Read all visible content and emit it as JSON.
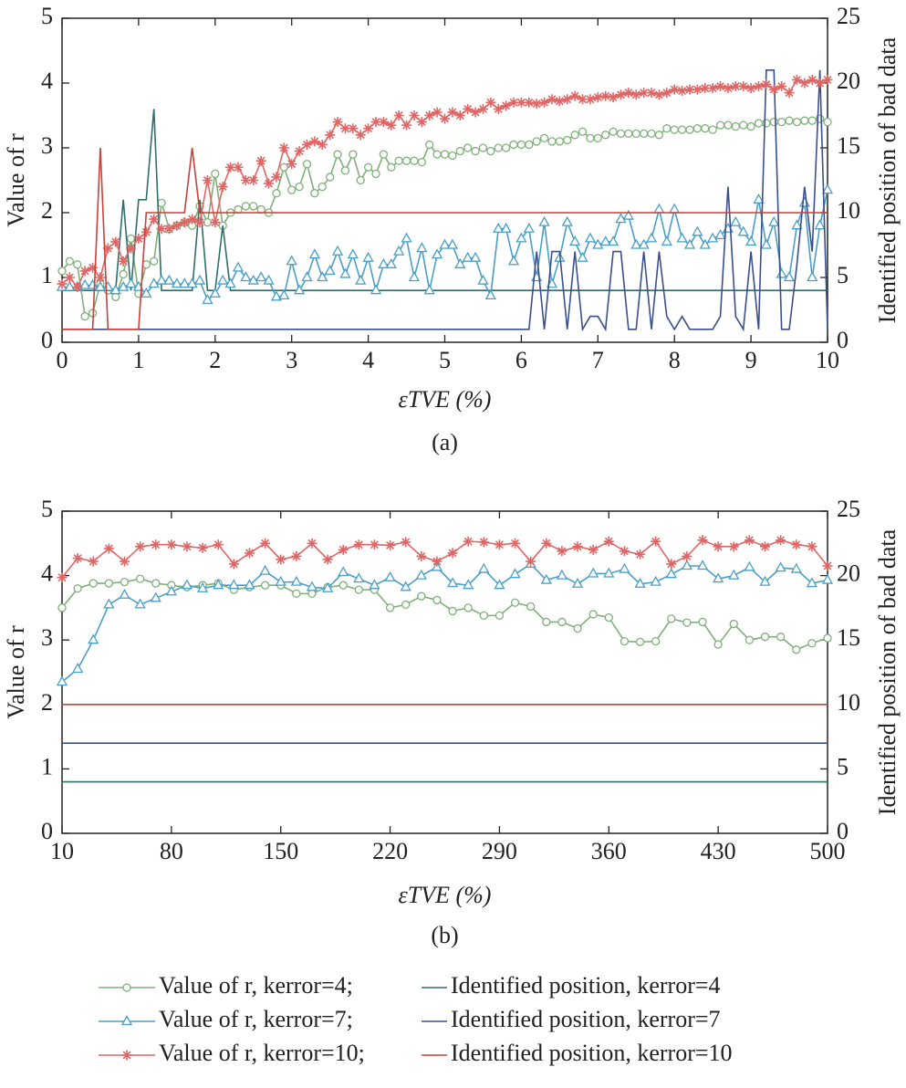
{
  "chart_data": [
    {
      "type": "line",
      "caption": "(a)",
      "xlabel": "εTVE (%)",
      "ylabel": "Value of r",
      "y2label": "Identified position of bad data",
      "x": [
        0,
        0.1,
        0.2,
        0.3,
        0.4,
        0.5,
        0.6,
        0.7,
        0.8,
        0.9,
        1,
        1.1,
        1.2,
        1.3,
        1.4,
        1.5,
        1.6,
        1.7,
        1.8,
        1.9,
        2,
        2.1,
        2.2,
        2.3,
        2.4,
        2.5,
        2.6,
        2.7,
        2.8,
        2.9,
        3,
        3.1,
        3.2,
        3.3,
        3.4,
        3.5,
        3.6,
        3.7,
        3.8,
        3.9,
        4,
        4.1,
        4.2,
        4.3,
        4.4,
        4.5,
        4.6,
        4.7,
        4.8,
        4.9,
        5,
        5.1,
        5.2,
        5.3,
        5.4,
        5.5,
        5.6,
        5.7,
        5.8,
        5.9,
        6,
        6.1,
        6.2,
        6.3,
        6.4,
        6.5,
        6.6,
        6.7,
        6.8,
        6.9,
        7,
        7.1,
        7.2,
        7.3,
        7.4,
        7.5,
        7.6,
        7.7,
        7.8,
        7.9,
        8,
        8.1,
        8.2,
        8.3,
        8.4,
        8.5,
        8.6,
        8.7,
        8.8,
        8.9,
        9,
        9.1,
        9.2,
        9.3,
        9.4,
        9.5,
        9.6,
        9.7,
        9.8,
        9.9,
        10
      ],
      "xlim": [
        0,
        10
      ],
      "xticks": [
        0,
        1,
        2,
        3,
        4,
        5,
        6,
        7,
        8,
        9,
        10
      ],
      "ylim": [
        0,
        5
      ],
      "yticks": [
        0,
        1,
        2,
        3,
        4,
        5
      ],
      "y2lim": [
        0,
        25
      ],
      "y2ticks": [
        0,
        5,
        10,
        15,
        20,
        25
      ],
      "series": [
        {
          "name": "Value of r, kerror=4;",
          "color": "#7fb07a",
          "marker": "circle",
          "values": [
            1.1,
            1.25,
            1.2,
            0.4,
            0.45,
            0.9,
            0.8,
            0.7,
            1.05,
            1.6,
            0.75,
            1.2,
            1.25,
            2.15,
            1.75,
            1.8,
            1.85,
            1.8,
            2.1,
            1.85,
            2.6,
            1.8,
            2.0,
            2.05,
            2.1,
            2.1,
            2.05,
            2.0,
            2.3,
            2.7,
            2.35,
            2.4,
            2.75,
            2.3,
            2.4,
            2.55,
            2.9,
            2.65,
            2.9,
            2.5,
            2.7,
            2.6,
            2.9,
            2.7,
            2.8,
            2.8,
            2.8,
            2.78,
            3.05,
            2.9,
            2.9,
            2.88,
            2.95,
            3.0,
            2.95,
            3.0,
            2.95,
            3.0,
            3.0,
            3.05,
            3.05,
            3.05,
            3.1,
            3.15,
            3.1,
            3.1,
            3.12,
            3.2,
            3.25,
            3.15,
            3.15,
            3.2,
            3.25,
            3.22,
            3.22,
            3.22,
            3.22,
            3.22,
            3.2,
            3.3,
            3.28,
            3.28,
            3.28,
            3.3,
            3.3,
            3.28,
            3.35,
            3.35,
            3.33,
            3.35,
            3.33,
            3.38,
            3.38,
            3.4,
            3.4,
            3.42,
            3.4,
            3.42,
            3.42,
            3.45,
            3.4
          ]
        },
        {
          "name": "Identified position, kerror=4",
          "color": "#2e6f6a",
          "axis": "y2",
          "values": [
            4,
            4,
            4,
            4,
            4,
            4,
            4,
            4,
            11,
            4,
            11,
            11,
            18,
            4,
            4,
            4,
            4,
            4,
            11,
            4,
            4,
            9,
            4,
            4,
            4,
            4,
            4,
            4,
            4,
            4,
            4,
            4,
            4,
            4,
            4,
            4,
            4,
            4,
            4,
            4,
            4,
            4,
            4,
            4,
            4,
            4,
            4,
            4,
            4,
            4,
            4,
            4,
            4,
            4,
            4,
            4,
            4,
            4,
            4,
            4,
            4,
            4,
            4,
            4,
            4,
            4,
            4,
            4,
            4,
            4,
            4,
            4,
            4,
            4,
            4,
            4,
            4,
            4,
            4,
            4,
            4,
            4,
            4,
            4,
            4,
            4,
            4,
            4,
            4,
            4,
            4,
            4,
            4,
            4,
            4,
            4,
            4,
            4,
            4,
            4,
            4
          ]
        },
        {
          "name": "Value of r, kerror=7;",
          "color": "#4a9fc8",
          "marker": "triangle",
          "values": [
            0.85,
            0.85,
            0.85,
            0.88,
            0.88,
            0.85,
            0.85,
            0.8,
            0.85,
            0.9,
            0.85,
            0.75,
            0.9,
            0.95,
            0.95,
            0.9,
            0.9,
            0.9,
            0.95,
            0.65,
            0.75,
            0.95,
            0.9,
            1.15,
            1.0,
            0.95,
            1.0,
            0.95,
            0.7,
            0.72,
            1.25,
            0.8,
            1.0,
            1.35,
            1.0,
            1.1,
            1.4,
            1.05,
            1.35,
            0.95,
            1.3,
            0.8,
            1.2,
            1.2,
            1.4,
            1.6,
            1.0,
            1.45,
            0.8,
            1.35,
            1.5,
            1.5,
            1.2,
            1.3,
            1.3,
            0.95,
            0.72,
            1.75,
            1.75,
            1.25,
            1.6,
            1.75,
            1.0,
            1.85,
            0.9,
            1.3,
            1.85,
            1.55,
            1.3,
            1.6,
            1.5,
            1.55,
            1.55,
            1.9,
            1.95,
            1.5,
            1.5,
            1.6,
            2.05,
            1.55,
            2.05,
            1.6,
            1.5,
            1.7,
            1.5,
            1.6,
            1.65,
            1.75,
            1.85,
            1.7,
            1.55,
            2.2,
            1.5,
            1.85,
            1.05,
            1.0,
            1.8,
            2.15,
            1.0,
            1.8,
            2.35
          ]
        },
        {
          "name": "Identified position, kerror=7",
          "color": "#3b4f8f",
          "axis": "y2",
          "values": [
            1,
            1,
            1,
            1,
            1,
            1,
            1,
            1,
            1,
            1,
            1,
            1,
            1,
            1,
            1,
            1,
            1,
            1,
            1,
            1,
            1,
            1,
            1,
            1,
            1,
            1,
            1,
            1,
            1,
            1,
            1,
            1,
            1,
            1,
            1,
            1,
            1,
            1,
            1,
            1,
            1,
            1,
            1,
            1,
            1,
            1,
            1,
            1,
            1,
            1,
            1,
            1,
            1,
            1,
            1,
            1,
            1,
            1,
            1,
            1,
            1,
            1,
            7,
            1,
            7,
            7,
            1,
            7,
            1,
            2,
            2,
            1,
            7,
            7,
            1,
            1,
            7,
            1,
            7,
            2,
            1,
            2,
            1,
            1,
            1,
            1,
            2,
            12,
            2,
            1,
            7,
            1,
            21,
            21,
            1,
            1,
            6,
            12,
            7,
            21,
            1
          ]
        },
        {
          "name": "Value of r, kerror=10;",
          "color": "#e06666",
          "marker": "star",
          "values": [
            0.9,
            1.0,
            0.85,
            1.1,
            1.15,
            1.0,
            1.45,
            1.55,
            1.25,
            1.45,
            1.6,
            1.7,
            1.9,
            1.75,
            1.75,
            1.8,
            1.85,
            1.9,
            1.85,
            2.5,
            1.85,
            2.4,
            2.7,
            2.7,
            2.5,
            2.5,
            2.8,
            2.45,
            2.55,
            3.0,
            2.75,
            2.95,
            3.05,
            3.1,
            3.05,
            3.2,
            3.4,
            3.3,
            3.3,
            3.2,
            3.3,
            3.4,
            3.4,
            3.35,
            3.5,
            3.35,
            3.5,
            3.4,
            3.5,
            3.55,
            3.45,
            3.55,
            3.5,
            3.6,
            3.55,
            3.6,
            3.7,
            3.6,
            3.65,
            3.7,
            3.7,
            3.7,
            3.68,
            3.7,
            3.75,
            3.72,
            3.75,
            3.8,
            3.75,
            3.75,
            3.78,
            3.8,
            3.78,
            3.82,
            3.85,
            3.82,
            3.85,
            3.85,
            3.82,
            3.85,
            3.9,
            3.88,
            3.9,
            3.9,
            3.92,
            3.92,
            3.95,
            3.92,
            3.95,
            3.95,
            3.92,
            3.95,
            3.98,
            3.9,
            3.95,
            3.85,
            4.05,
            4.0,
            4.05,
            4.0,
            4.05
          ]
        },
        {
          "name": "Identified position, kerror=10",
          "color": "#c9413a",
          "axis": "y2",
          "values": [
            1,
            1,
            1,
            1,
            1,
            15,
            1,
            1,
            1,
            1,
            1,
            10,
            10,
            10,
            10,
            10,
            10,
            15,
            10,
            10,
            10,
            10,
            10,
            10,
            10,
            10,
            10,
            10,
            10,
            10,
            10,
            10,
            10,
            10,
            10,
            10,
            10,
            10,
            10,
            10,
            10,
            10,
            10,
            10,
            10,
            10,
            10,
            10,
            10,
            10,
            10,
            10,
            10,
            10,
            10,
            10,
            10,
            10,
            10,
            10,
            10,
            10,
            10,
            10,
            10,
            10,
            10,
            10,
            10,
            10,
            10,
            10,
            10,
            10,
            10,
            10,
            10,
            10,
            10,
            10,
            10,
            10,
            10,
            10,
            10,
            10,
            10,
            10,
            10,
            10,
            10,
            10,
            10,
            10,
            10,
            10,
            10,
            10,
            10,
            10,
            10
          ]
        }
      ]
    },
    {
      "type": "line",
      "caption": "(b)",
      "xlabel": "εTVE (%)",
      "ylabel": "Value of r",
      "y2label": "Identified position of bad data",
      "x": [
        10,
        20,
        30,
        40,
        50,
        60,
        70,
        80,
        90,
        100,
        110,
        120,
        130,
        140,
        150,
        160,
        170,
        180,
        190,
        200,
        210,
        220,
        230,
        240,
        250,
        260,
        270,
        280,
        290,
        300,
        310,
        320,
        330,
        340,
        350,
        360,
        370,
        380,
        390,
        400,
        410,
        420,
        430,
        440,
        450,
        460,
        470,
        480,
        490,
        500
      ],
      "xlim": [
        10,
        500
      ],
      "xticks": [
        10,
        80,
        150,
        220,
        290,
        360,
        430,
        500
      ],
      "ylim": [
        0,
        5
      ],
      "yticks": [
        0,
        1,
        2,
        3,
        4,
        5
      ],
      "y2lim": [
        0,
        25
      ],
      "y2ticks": [
        0,
        5,
        10,
        15,
        20,
        25
      ],
      "series": [
        {
          "color": "#7fb07a",
          "marker": "circle",
          "values": [
            3.5,
            3.8,
            3.88,
            3.88,
            3.9,
            3.95,
            3.88,
            3.85,
            3.82,
            3.85,
            3.88,
            3.78,
            3.82,
            3.85,
            3.85,
            3.72,
            3.72,
            3.82,
            3.85,
            3.78,
            3.78,
            3.5,
            3.55,
            3.68,
            3.62,
            3.45,
            3.5,
            3.38,
            3.38,
            3.58,
            3.52,
            3.28,
            3.28,
            3.18,
            3.4,
            3.35,
            2.98,
            2.97,
            2.98,
            3.33,
            3.27,
            3.28,
            2.93,
            3.25,
            3.0,
            3.05,
            3.05,
            2.85,
            2.95,
            3.03
          ]
        },
        {
          "color": "#2e6f6a",
          "axis": "y2",
          "values": [
            4,
            4,
            4,
            4,
            4,
            4,
            4,
            4,
            4,
            4,
            4,
            4,
            4,
            4,
            4,
            4,
            4,
            4,
            4,
            4,
            4,
            4,
            4,
            4,
            4,
            4,
            4,
            4,
            4,
            4,
            4,
            4,
            4,
            4,
            4,
            4,
            4,
            4,
            4,
            4,
            4,
            4,
            4,
            4,
            4,
            4,
            4,
            4,
            4,
            4
          ]
        },
        {
          "color": "#4a9fc8",
          "marker": "triangle",
          "values": [
            2.35,
            2.55,
            3.0,
            3.55,
            3.7,
            3.55,
            3.65,
            3.75,
            3.85,
            3.8,
            3.85,
            3.85,
            3.85,
            4.07,
            3.9,
            3.9,
            3.82,
            3.8,
            4.05,
            3.95,
            3.85,
            3.97,
            3.82,
            4.0,
            4.13,
            3.88,
            3.85,
            4.1,
            3.85,
            4.02,
            4.18,
            3.93,
            4.0,
            3.87,
            4.03,
            4.03,
            4.1,
            3.87,
            3.9,
            4.02,
            4.15,
            4.15,
            3.95,
            4.0,
            4.13,
            3.9,
            4.12,
            4.1,
            3.88,
            3.93
          ]
        },
        {
          "color": "#3b4f8f",
          "axis": "y2",
          "values": [
            7,
            7,
            7,
            7,
            7,
            7,
            7,
            7,
            7,
            7,
            7,
            7,
            7,
            7,
            7,
            7,
            7,
            7,
            7,
            7,
            7,
            7,
            7,
            7,
            7,
            7,
            7,
            7,
            7,
            7,
            7,
            7,
            7,
            7,
            7,
            7,
            7,
            7,
            7,
            7,
            7,
            7,
            7,
            7,
            7,
            7,
            7,
            7,
            7,
            7
          ]
        },
        {
          "color": "#e06666",
          "marker": "star",
          "values": [
            3.97,
            4.27,
            4.22,
            4.42,
            4.22,
            4.45,
            4.48,
            4.48,
            4.45,
            4.43,
            4.48,
            4.18,
            4.35,
            4.5,
            4.25,
            4.3,
            4.5,
            4.25,
            4.4,
            4.48,
            4.48,
            4.47,
            4.52,
            4.3,
            4.22,
            4.35,
            4.53,
            4.52,
            4.48,
            4.5,
            4.22,
            4.5,
            4.38,
            4.45,
            4.4,
            4.53,
            4.38,
            4.33,
            4.53,
            4.18,
            4.3,
            4.55,
            4.45,
            4.45,
            4.55,
            4.45,
            4.55,
            4.48,
            4.45,
            4.15
          ]
        },
        {
          "color": "#c9413a",
          "axis": "y2",
          "values": [
            10,
            10,
            10,
            10,
            10,
            10,
            10,
            10,
            10,
            10,
            10,
            10,
            10,
            10,
            10,
            10,
            10,
            10,
            10,
            10,
            10,
            10,
            10,
            10,
            10,
            10,
            10,
            10,
            10,
            10,
            10,
            10,
            10,
            10,
            10,
            10,
            10,
            10,
            10,
            10,
            10,
            10,
            10,
            10,
            10,
            10,
            10,
            10,
            10,
            10
          ]
        }
      ]
    }
  ]
}
